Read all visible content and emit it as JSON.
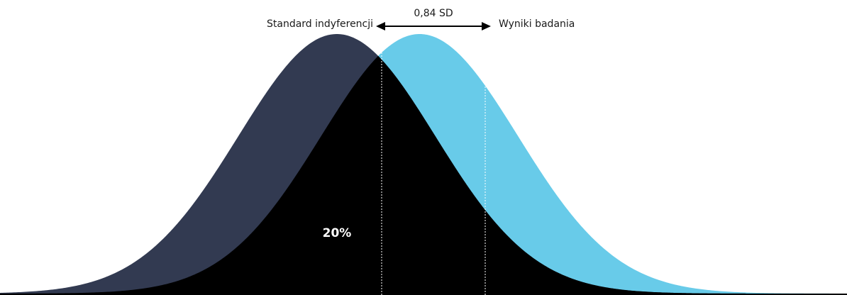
{
  "labels": {
    "left_curve": "Standard indyferencji",
    "right_curve": "Wyniki badania",
    "difference": "0,84 SD",
    "overlap_percent": "20%"
  },
  "colors": {
    "left_curve": "#323a51",
    "right_curve": "#68cbe9",
    "overlap": "#000000",
    "arrow": "#000000",
    "guide_lines": "#ffffff"
  },
  "distributions": {
    "shift_sd": 0.84,
    "x_range_sd": [
      -3.42,
      5.18
    ]
  }
}
